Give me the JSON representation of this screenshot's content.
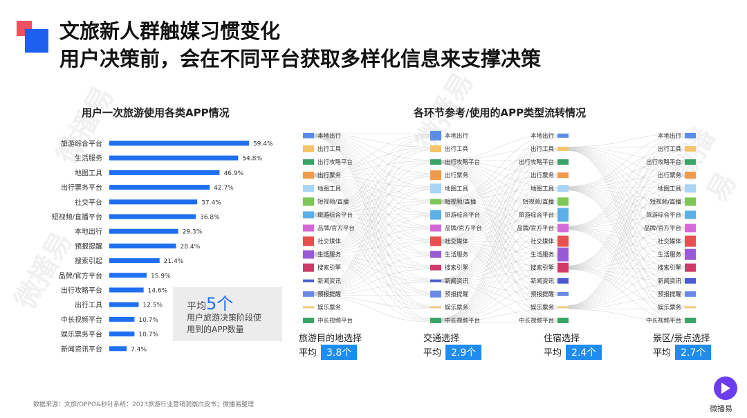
{
  "header": {
    "title_line1": "文旅新人群触媒习惯变化",
    "title_line2": "用户决策前，会在不同平台获取多样化信息来支撑决策"
  },
  "watermark": "微播易",
  "colors": {
    "accent_blue": "#1f6ff0",
    "bar_blue": "#1f6ff0",
    "badge_blue": "#1f8cf0",
    "brand_red": "#f0505f"
  },
  "chart_data": [
    {
      "type": "bar",
      "orientation": "horizontal",
      "title": "用户一次旅游使用各类APP情况",
      "categories": [
        "旅游综合平台",
        "生活服务",
        "地图工具",
        "出行票务平台",
        "社交平台",
        "短视频/直播平台",
        "本地出行",
        "预报提醒",
        "搜索引起",
        "品牌/官方平台",
        "出行攻略平台",
        "出行工具",
        "中长视频平台",
        "娱乐票务平台",
        "新闻资讯平台"
      ],
      "values": [
        59.4,
        54.8,
        46.9,
        42.7,
        37.4,
        36.8,
        29.3,
        28.4,
        21.4,
        15.9,
        14.6,
        12.5,
        10.7,
        10.7,
        7.4
      ],
      "value_labels": [
        "59.4%",
        "54.8%",
        "46.9%",
        "42.7%",
        "37.4%",
        "36.8%",
        "29.3%",
        "28.4%",
        "21.4%",
        "15.9%",
        "14.6%",
        "12.5%",
        "10.7%",
        "10.7%",
        "7.4%"
      ],
      "xlim": [
        0,
        100
      ],
      "grid": false
    },
    {
      "type": "sankey",
      "title": "各环节参考/使用的APP类型流转情况",
      "stages": [
        {
          "name": "旅游目的地选择",
          "avg_label": "平均",
          "avg_value": "3.8个",
          "nodes": [
            "本地出行",
            "出行工具",
            "出行攻略平台",
            "出行票务",
            "地图工具",
            "短视频/直播",
            "旅游综合平台",
            "品牌/官方平台",
            "社交媒体",
            "生活服务",
            "搜索引擎",
            "新闻资讯",
            "预报提醒",
            "娱乐票务",
            "中长视频平台"
          ]
        },
        {
          "name": "交通选择",
          "avg_label": "平均",
          "avg_value": "2.9个",
          "nodes": [
            "本地出行",
            "出行工具",
            "出行攻略平台",
            "出行票务",
            "地图工具",
            "短视频/直播",
            "旅游综合平台",
            "品牌/官方平台",
            "社交媒体",
            "生活服务",
            "搜索引擎",
            "新闻资讯",
            "预报提醒",
            "娱乐票务",
            "中长视频平台"
          ]
        },
        {
          "name": "住宿选择",
          "avg_label": "平均",
          "avg_value": "2.4个",
          "nodes": [
            "本地出行",
            "出行工具",
            "出行攻略平台",
            "出行票务",
            "地图工具",
            "短视频/直播",
            "旅游综合平台",
            "品牌/官方平台",
            "社交媒体",
            "生活服务",
            "搜索引擎",
            "新闻资讯",
            "预报提醒",
            "娱乐票务",
            "中长视频平台"
          ]
        },
        {
          "name": "景区/景点选择",
          "avg_label": "平均",
          "avg_value": "2.7个",
          "nodes": [
            "本地出行",
            "出行工具",
            "出行攻略平台",
            "出行票务",
            "地图工具",
            "短视频/直播",
            "旅游综合平台",
            "品牌/官方平台",
            "社交媒体",
            "生活服务",
            "搜索引擎",
            "新闻资讯",
            "预报提醒",
            "娱乐票务",
            "中长视频平台"
          ]
        }
      ],
      "node_colors": [
        "#5b8de8",
        "#f5c46a",
        "#3aa46a",
        "#f09a4a",
        "#a8d4f5",
        "#7cc756",
        "#5cb0e8",
        "#d46ad8",
        "#e85050",
        "#9a5ad8",
        "#d03a6a",
        "#4a5ad0",
        "#6a8ae8",
        "#f0c87a",
        "#3aa46a"
      ]
    }
  ],
  "summary_box": {
    "prefix": "平均",
    "number": "5个",
    "line2": "用户旅游决策阶段使",
    "line3": "用到的APP数量"
  },
  "footer": {
    "source": "数据来源：文旅/OPPO&秒针系统：2023旅游行业营销洞察白皮书；微播易整理",
    "brand_name": "微播易"
  }
}
